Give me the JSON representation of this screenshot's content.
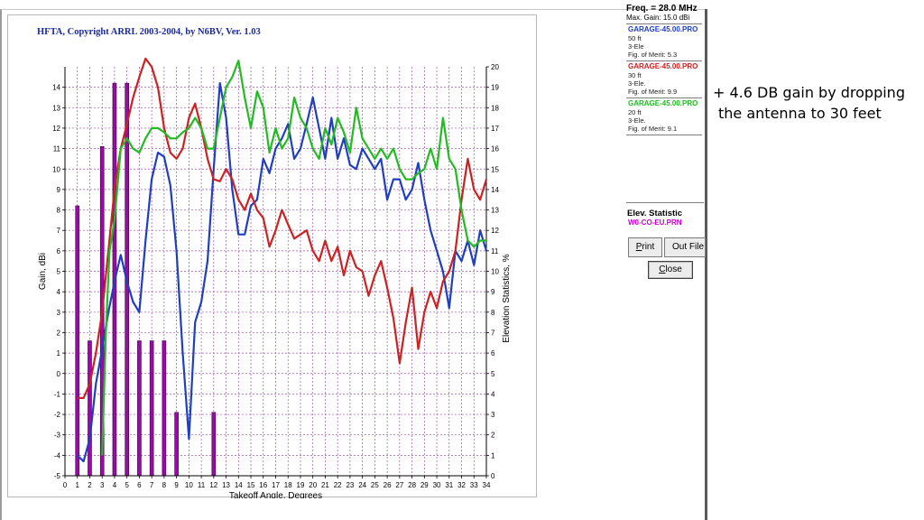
{
  "window": {
    "title": "HFTA, Copyright ARRL 2003-2004, by N6BV, Ver. 1.03"
  },
  "side_panel": {
    "freq": "Freq. = 28.0 MHz",
    "max_gain": "Max. Gain: 15.0 dBi",
    "files": [
      {
        "name": "GARAGE-45.00.PRO",
        "height": "50 ft",
        "type": "3-Ele",
        "merit": "Fig. of Merit: 5.3",
        "color": "#1f3fbf"
      },
      {
        "name": "GARAGE-45.00.PRO",
        "height": "30 ft",
        "type": "3-Ele.",
        "merit": "Fig. of Merit: 9.9",
        "color": "#cc2222"
      },
      {
        "name": "GARAGE-45.00.PRO",
        "height": "20 ft",
        "type": "3-Ele.",
        "merit": "Fig. of Merit: 9.1",
        "color": "#22bb22"
      }
    ],
    "elev_title": "Elev. Statistic",
    "elev_file": "W0-CO-EU.PRN",
    "print_label_ul": "P",
    "print_label_rest": "rint",
    "outfile_label": "Out File",
    "close_label_ul": "C",
    "close_label_rest": "lose"
  },
  "annotation": {
    "line1": "+ 4.6 DB gain by dropping",
    "line2": "the antenna to 30 feet"
  },
  "chart_data": {
    "type": "line",
    "xlabel": "Takeoff Angle, Degrees",
    "ylabel": "Gain, dBi",
    "y2label": "Elevation Statistics, %",
    "xlim": [
      0,
      34
    ],
    "ylim": [
      -5,
      15
    ],
    "y2lim": [
      0,
      20
    ],
    "x_ticks": [
      0,
      1,
      2,
      3,
      4,
      5,
      6,
      7,
      8,
      9,
      10,
      11,
      12,
      13,
      14,
      15,
      16,
      17,
      18,
      19,
      20,
      21,
      22,
      23,
      24,
      25,
      26,
      27,
      28,
      29,
      30,
      31,
      32,
      33,
      34
    ],
    "y_ticks": [
      -5,
      -4,
      -3,
      -2,
      -1,
      0,
      1,
      2,
      3,
      4,
      5,
      6,
      7,
      8,
      9,
      10,
      11,
      12,
      13,
      14
    ],
    "y2_ticks": [
      0,
      1,
      2,
      3,
      4,
      5,
      6,
      7,
      8,
      9,
      10,
      11,
      12,
      13,
      14,
      15,
      16,
      17,
      18,
      19,
      20
    ],
    "grid": true,
    "series": [
      {
        "name": "GARAGE-45.00.PRO",
        "color": "#1f3fbf",
        "x": [
          1,
          1.5,
          2,
          2.5,
          3,
          3.5,
          4,
          4.5,
          5,
          5.5,
          6,
          6.5,
          7,
          7.5,
          8,
          8.5,
          9,
          9.5,
          10,
          10.5,
          11,
          11.5,
          12,
          12.5,
          13,
          13.5,
          14,
          14.5,
          15,
          15.5,
          16,
          16.5,
          17,
          17.5,
          18,
          18.5,
          19,
          19.5,
          20,
          20.5,
          21,
          21.5,
          22,
          22.5,
          23,
          23.5,
          24,
          24.5,
          25,
          25.5,
          26,
          26.5,
          27,
          27.5,
          28,
          28.5,
          29,
          29.5,
          30,
          30.5,
          31,
          31.5,
          32,
          32.5,
          33,
          33.5,
          34
        ],
        "values": [
          -4,
          -4.3,
          -3.2,
          -0.5,
          1.2,
          3,
          4.5,
          5.8,
          4.5,
          3.5,
          3,
          6.5,
          9.5,
          10.8,
          10.6,
          9.2,
          6,
          1,
          -3.2,
          2.5,
          3.5,
          5.5,
          10,
          14.2,
          12.5,
          9,
          6.8,
          6.8,
          8.2,
          8.5,
          10.5,
          9.8,
          11,
          11.5,
          12.2,
          10.5,
          11,
          12.2,
          13.5,
          12,
          10.5,
          12.5,
          10.5,
          11.5,
          10.2,
          10,
          11,
          10.5,
          10,
          10.5,
          8.5,
          9.5,
          9.5,
          8.5,
          9,
          10.3,
          8.5,
          7,
          6,
          5,
          3.2,
          6,
          5.5,
          6.5,
          5.3,
          7,
          6
        ]
      },
      {
        "name": "GARAGE-45.00.PRO",
        "color": "#cc2222",
        "x": [
          1,
          1.5,
          2,
          2.5,
          3,
          3.5,
          4,
          4.5,
          5,
          5.5,
          6,
          6.5,
          7,
          7.5,
          8,
          8.5,
          9,
          9.5,
          10,
          10.5,
          11,
          11.5,
          12,
          12.5,
          13,
          13.5,
          14,
          14.5,
          15,
          15.5,
          16,
          16.5,
          17,
          17.5,
          18,
          18.5,
          19,
          19.5,
          20,
          20.5,
          21,
          21.5,
          22,
          22.5,
          23,
          23.5,
          24,
          24.5,
          25,
          25.5,
          26,
          26.5,
          27,
          27.5,
          28,
          28.5,
          29,
          29.5,
          30,
          30.5,
          31,
          31.5,
          32,
          32.5,
          33,
          33.5,
          34
        ],
        "values": [
          -1.2,
          -1.2,
          -0.5,
          1,
          3,
          6,
          9,
          11,
          12.2,
          13.5,
          14.5,
          15.4,
          15,
          14,
          12,
          10.8,
          10.5,
          11,
          12.5,
          13.2,
          12,
          10.5,
          9.5,
          9.4,
          10,
          9.5,
          8.5,
          8,
          8.8,
          8,
          7.6,
          6.2,
          7,
          8,
          7.3,
          6.6,
          6.8,
          7,
          6,
          5.5,
          6.5,
          5.5,
          6.2,
          4.8,
          6,
          5.2,
          5,
          3.8,
          4.8,
          5.5,
          4.2,
          2.7,
          0.5,
          2.5,
          4.2,
          1.2,
          3,
          4,
          3.2,
          4.5,
          5,
          6,
          8.5,
          10.5,
          9,
          8.5,
          9.5
        ]
      },
      {
        "name": "GARAGE-45.00.PRO",
        "color": "#22bb22",
        "x": [
          3,
          3.3,
          3.6,
          4,
          4.5,
          5,
          5.5,
          6,
          6.5,
          7,
          7.5,
          8,
          8.5,
          9,
          9.5,
          10,
          10.5,
          11,
          11.5,
          12,
          12.5,
          13,
          13.5,
          14,
          14.5,
          15,
          15.5,
          16,
          16.5,
          17,
          17.5,
          18,
          18.5,
          19,
          19.5,
          20,
          20.5,
          21,
          21.5,
          22,
          22.5,
          23,
          23.5,
          24,
          24.5,
          25,
          25.5,
          26,
          26.5,
          27,
          27.5,
          28,
          28.5,
          29,
          29.5,
          30,
          30.5,
          31,
          31.5,
          32,
          32.5,
          33,
          33.5,
          34
        ],
        "values": [
          -4,
          2,
          6,
          7.5,
          11,
          11.5,
          11,
          10.8,
          11.5,
          12,
          12,
          11.8,
          11.5,
          11.5,
          11.8,
          12,
          12.5,
          12,
          11,
          11,
          12.5,
          14,
          14.5,
          15.3,
          13.5,
          12,
          13.8,
          13,
          10.8,
          12,
          11,
          11.5,
          13.5,
          12.5,
          12,
          11,
          10.5,
          12,
          11.2,
          12.5,
          11.8,
          10.8,
          13,
          11.5,
          11,
          10.5,
          11,
          10.5,
          11,
          10,
          9.5,
          9.5,
          9.8,
          10,
          11,
          10,
          12.5,
          10.5,
          10,
          8,
          6.5,
          6.2,
          6.5,
          6.5
        ]
      },
      {
        "name": "W0-CO-EU.PRN",
        "color": "#9a0aa8",
        "type": "bar",
        "axis": "y2",
        "x": [
          1,
          2,
          3,
          4,
          5,
          6,
          7,
          8,
          9,
          12
        ],
        "values": [
          13.2,
          6.6,
          16.1,
          19.2,
          19.2,
          6.6,
          6.6,
          6.6,
          3.1,
          3.1
        ]
      }
    ]
  }
}
